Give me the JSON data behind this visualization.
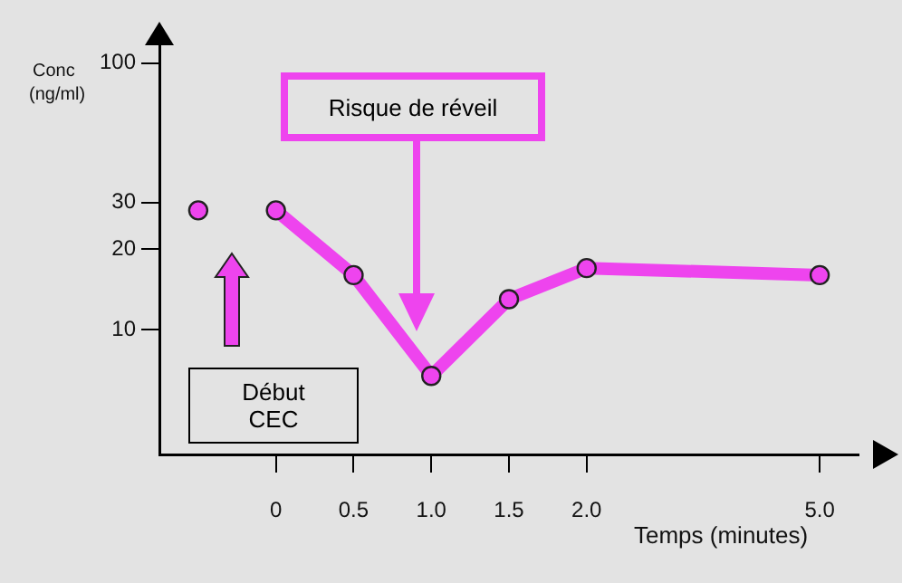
{
  "chart_data": {
    "type": "line",
    "xlabel": "Temps (minutes)",
    "ylabel": "Conc (ng/ml)",
    "log": true,
    "marker": "circle",
    "categories": [
      null,
      "0",
      "0.5",
      "1.0",
      "1.5",
      "2.0",
      null,
      null,
      "5.0"
    ],
    "series": [
      {
        "type": "scatter",
        "color": "#ee44ee",
        "values": [
          28,
          null,
          null,
          null,
          null,
          null,
          null,
          null,
          null
        ]
      },
      {
        "color": "#ee44ee",
        "values": [
          null,
          28,
          16,
          6.7,
          13,
          17,
          null,
          null,
          16
        ]
      }
    ],
    "ylim": [
      3.4,
      126
    ],
    "yticks": [
      10,
      20,
      30,
      100
    ],
    "annotations": [
      "Risque de réveil",
      "Début\nCEC"
    ]
  }
}
